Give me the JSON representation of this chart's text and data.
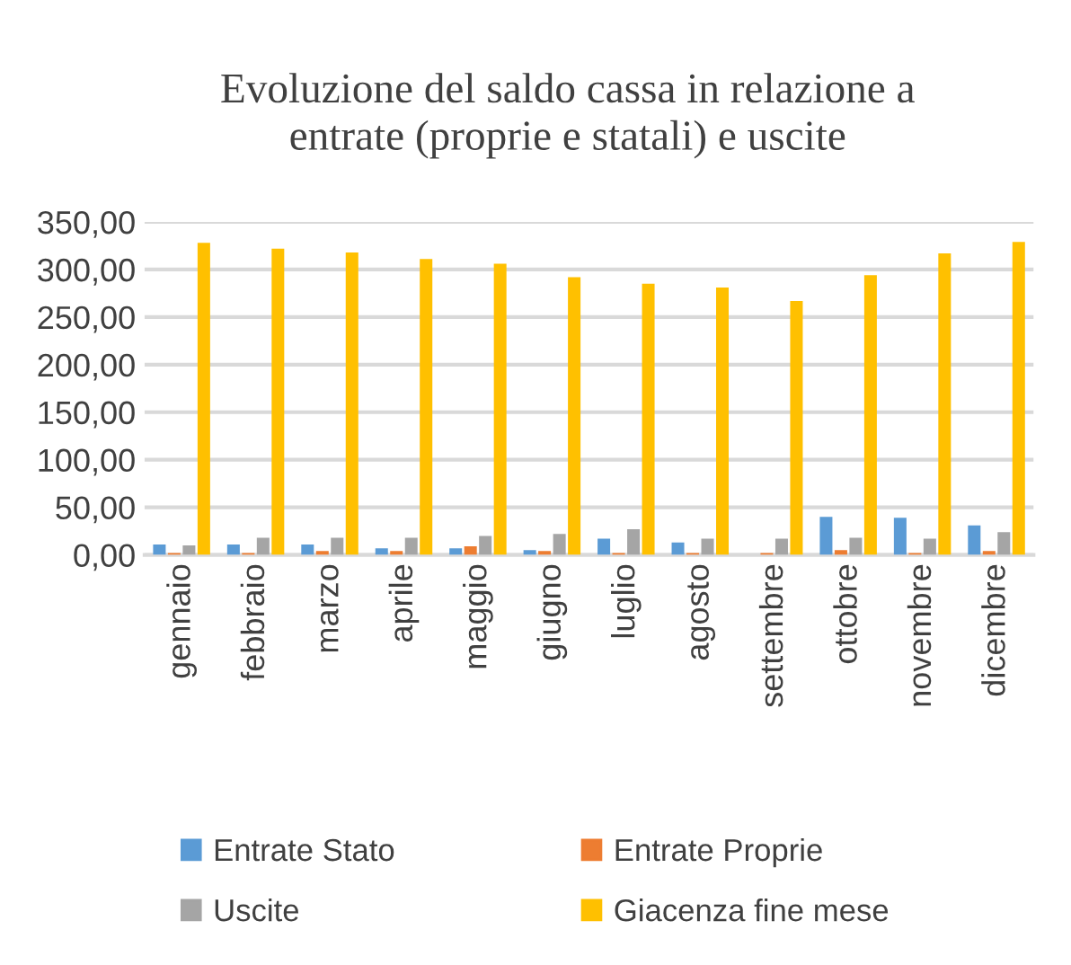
{
  "chart_data": {
    "type": "bar",
    "title": "Evoluzione del saldo cassa in relazione a\nentrate (proprie e statali) e uscite",
    "categories": [
      "gennaio",
      "febbraio",
      "marzo",
      "aprile",
      "maggio",
      "giugno",
      "luglio",
      "agosto",
      "settembre",
      "ottobre",
      "novembre",
      "dicembre"
    ],
    "series": [
      {
        "name": "Entrate Stato",
        "color": "#5b9bd5",
        "values": [
          11,
          11,
          11,
          7,
          7,
          5,
          17,
          13,
          0,
          40,
          39,
          31
        ]
      },
      {
        "name": "Entrate Proprie",
        "color": "#ed7d31",
        "values": [
          2,
          2,
          4,
          4,
          9,
          4,
          2,
          2,
          2,
          5,
          2,
          4
        ]
      },
      {
        "name": "Uscite",
        "color": "#a5a5a5",
        "values": [
          10,
          18,
          18,
          18,
          20,
          22,
          27,
          17,
          17,
          18,
          17,
          24
        ]
      },
      {
        "name": "Giacenza fine mese",
        "color": "#ffc000",
        "values": [
          328,
          322,
          318,
          311,
          306,
          292,
          285,
          281,
          267,
          294,
          317,
          329
        ]
      }
    ],
    "ylim": [
      0,
      350
    ],
    "yticks": [
      {
        "value": 0,
        "label": "0,00"
      },
      {
        "value": 50,
        "label": "50,00"
      },
      {
        "value": 100,
        "label": "100,00"
      },
      {
        "value": 150,
        "label": "150,00"
      },
      {
        "value": 200,
        "label": "200,00"
      },
      {
        "value": 250,
        "label": "250,00"
      },
      {
        "value": 300,
        "label": "300,00"
      },
      {
        "value": 350,
        "label": "350,00"
      }
    ],
    "grid": "y",
    "legend": "bottom"
  }
}
